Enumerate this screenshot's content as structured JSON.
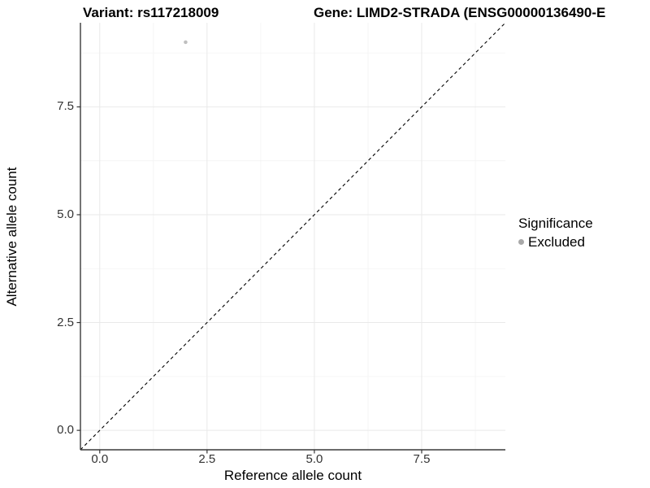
{
  "titles": {
    "variant": "Variant: rs117218009",
    "gene": "Gene: LIMD2-STRADA (ENSG00000136490-E"
  },
  "chart_data": {
    "type": "scatter",
    "xlabel": "Reference allele count",
    "ylabel": "Alternative allele count",
    "xlim": [
      -0.45,
      9.45
    ],
    "ylim": [
      -0.45,
      9.45
    ],
    "x_major_ticks": [
      0.0,
      2.5,
      5.0,
      7.5
    ],
    "y_major_ticks": [
      0.0,
      2.5,
      5.0,
      7.5
    ],
    "x_tick_labels": [
      "0.0",
      "2.5",
      "5.0",
      "7.5"
    ],
    "y_tick_labels": [
      "0.0",
      "2.5",
      "5.0",
      "7.5"
    ],
    "x_minor_ticks": [
      1.25,
      3.75,
      6.25,
      8.75
    ],
    "y_minor_ticks": [
      1.25,
      3.75,
      6.25,
      8.75
    ],
    "grid": true,
    "points": [
      {
        "x": 2,
        "y": 9,
        "series": "Excluded"
      }
    ],
    "identity_line": {
      "slope": 1,
      "intercept": 0,
      "style": "dashed"
    },
    "legend": {
      "title": "Significance",
      "position": "right",
      "items": [
        {
          "label": "Excluded",
          "color": "#a8a8a8"
        }
      ]
    }
  },
  "colors": {
    "background": "#ffffff",
    "axis_line": "#3a3a3a",
    "tick_mark": "#333333",
    "tick_text": "#333333",
    "grid_major": "#e9e9e9",
    "grid_minor": "#f3f3f3",
    "identity_line": "#000000",
    "point": "#bfbfbf",
    "legend_key": "#a8a8a8"
  }
}
